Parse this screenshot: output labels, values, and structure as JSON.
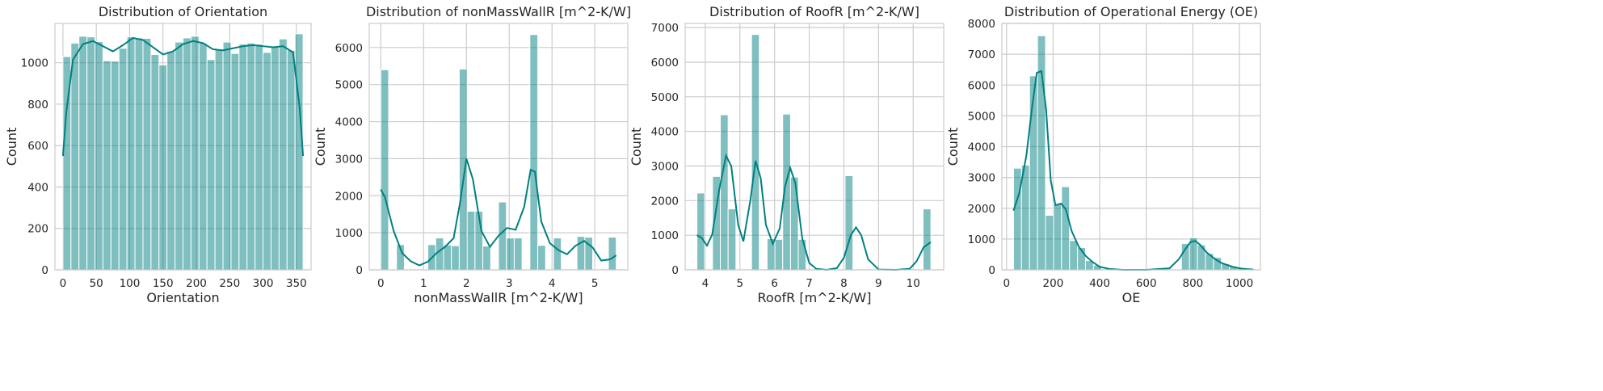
{
  "colors": {
    "bar": "#008080",
    "kde": "#008080",
    "grid": "#cccccc",
    "text": "#262626"
  },
  "chart_data": [
    {
      "type": "bar",
      "title": "Distribution of Orientation",
      "xlabel": "Orientation",
      "ylabel": "Count",
      "xlim": [
        -12,
        372
      ],
      "ylim": [
        0,
        1190
      ],
      "xticks": [
        0,
        50,
        100,
        150,
        200,
        250,
        300,
        350
      ],
      "yticks": [
        0,
        200,
        400,
        600,
        800,
        1000
      ],
      "grid": true,
      "bin_edges": [
        0,
        12,
        24,
        36,
        48,
        60,
        72,
        84,
        96,
        108,
        120,
        132,
        144,
        156,
        168,
        180,
        192,
        204,
        216,
        228,
        240,
        252,
        264,
        276,
        288,
        300,
        312,
        324,
        336,
        348,
        360
      ],
      "counts": [
        1030,
        1095,
        1128,
        1125,
        1102,
        1010,
        1008,
        1070,
        1125,
        1120,
        1118,
        1040,
        990,
        1055,
        1100,
        1120,
        1128,
        1095,
        1015,
        1065,
        1100,
        1045,
        1090,
        1095,
        1090,
        1050,
        1080,
        1115,
        1060,
        1140
      ],
      "kde": {
        "x": [
          0,
          5,
          15,
          30,
          45,
          60,
          75,
          90,
          105,
          120,
          135,
          150,
          165,
          180,
          195,
          210,
          225,
          240,
          255,
          270,
          285,
          300,
          315,
          330,
          345,
          355,
          360
        ],
        "y": [
          550,
          760,
          1015,
          1090,
          1105,
          1080,
          1055,
          1085,
          1120,
          1110,
          1075,
          1040,
          1055,
          1090,
          1105,
          1095,
          1065,
          1060,
          1070,
          1080,
          1085,
          1080,
          1075,
          1080,
          1050,
          780,
          550
        ]
      }
    },
    {
      "type": "bar",
      "title": "Distribution of nonMassWallR [m^2-K/W]",
      "xlabel": "nonMassWallR [m^2-K/W]",
      "ylabel": "Count",
      "xlim": [
        -0.27,
        5.77
      ],
      "ylim": [
        0,
        6650
      ],
      "xticks": [
        0,
        1,
        2,
        3,
        4,
        5
      ],
      "yticks": [
        0,
        1000,
        2000,
        3000,
        4000,
        5000,
        6000
      ],
      "grid": true,
      "bin_edges": [
        0,
        0.183,
        0.367,
        0.55,
        0.733,
        0.917,
        1.1,
        1.283,
        1.467,
        1.65,
        1.833,
        2.017,
        2.2,
        2.383,
        2.567,
        2.75,
        2.933,
        3.117,
        3.3,
        3.483,
        3.667,
        3.85,
        4.033,
        4.217,
        4.4,
        4.583,
        4.767,
        4.95,
        5.133,
        5.317,
        5.5
      ],
      "counts": [
        5400,
        0,
        680,
        0,
        0,
        0,
        680,
        860,
        670,
        650,
        5420,
        1580,
        1580,
        640,
        0,
        1830,
        860,
        860,
        0,
        6350,
        660,
        0,
        860,
        0,
        0,
        900,
        880,
        0,
        0,
        880
      ],
      "kde": {
        "x": [
          0,
          0.1,
          0.3,
          0.5,
          0.7,
          0.9,
          1.1,
          1.3,
          1.5,
          1.7,
          1.85,
          2.0,
          2.15,
          2.35,
          2.55,
          2.75,
          2.95,
          3.15,
          3.35,
          3.5,
          3.6,
          3.75,
          3.95,
          4.15,
          4.35,
          4.55,
          4.75,
          4.95,
          5.15,
          5.35,
          5.5
        ],
        "y": [
          2170,
          1950,
          1050,
          450,
          230,
          120,
          220,
          450,
          620,
          850,
          1800,
          3000,
          2450,
          1050,
          620,
          920,
          1130,
          1080,
          1700,
          2700,
          2650,
          1300,
          720,
          530,
          420,
          650,
          780,
          600,
          250,
          280,
          390
        ]
      }
    },
    {
      "type": "bar",
      "title": "Distribution of RoofR [m^2-K/W]",
      "xlabel": "RoofR [m^2-K/W]",
      "ylabel": "Count",
      "xlim": [
        3.42,
        10.88
      ],
      "ylim": [
        0,
        7120
      ],
      "xticks": [
        4,
        5,
        6,
        7,
        8,
        9,
        10
      ],
      "yticks": [
        0,
        1000,
        2000,
        3000,
        4000,
        5000,
        6000,
        7000
      ],
      "grid": true,
      "bin_edges": [
        3.76,
        3.985,
        4.21,
        4.435,
        4.66,
        4.885,
        5.11,
        5.335,
        5.56,
        5.785,
        6.01,
        6.235,
        6.46,
        6.685,
        6.91,
        7.135,
        7.36,
        7.585,
        7.81,
        8.035,
        8.26,
        8.485,
        8.71,
        8.935,
        9.16,
        9.385,
        9.61,
        9.835,
        10.06,
        10.285,
        10.51
      ],
      "counts": [
        2220,
        0,
        2700,
        4480,
        1760,
        0,
        0,
        6800,
        0,
        900,
        880,
        4500,
        2680,
        880,
        0,
        0,
        0,
        0,
        0,
        2720,
        0,
        0,
        0,
        0,
        0,
        0,
        0,
        0,
        0,
        1760
      ],
      "kde": {
        "x": [
          3.76,
          3.9,
          4.05,
          4.2,
          4.4,
          4.6,
          4.75,
          4.95,
          5.1,
          5.3,
          5.45,
          5.6,
          5.75,
          5.95,
          6.15,
          6.3,
          6.45,
          6.6,
          6.8,
          7.0,
          7.2,
          7.5,
          7.8,
          8.0,
          8.2,
          8.35,
          8.5,
          8.7,
          9.0,
          9.5,
          9.9,
          10.1,
          10.3,
          10.51
        ],
        "y": [
          1000,
          920,
          700,
          1020,
          2300,
          3300,
          3000,
          1300,
          820,
          2000,
          3150,
          2650,
          1300,
          750,
          1200,
          2400,
          2950,
          2500,
          900,
          200,
          30,
          0,
          50,
          350,
          1000,
          1230,
          1000,
          300,
          10,
          0,
          30,
          250,
          650,
          800
        ]
      }
    },
    {
      "type": "bar",
      "title": "Distribution of Operational Energy (OE)",
      "xlabel": "OE",
      "ylabel": "Count",
      "xlim": [
        -20,
        1090
      ],
      "ylim": [
        0,
        8000
      ],
      "xticks": [
        0,
        200,
        400,
        600,
        800,
        1000
      ],
      "yticks": [
        0,
        1000,
        2000,
        3000,
        4000,
        5000,
        6000,
        7000,
        8000
      ],
      "grid": true,
      "bin_edges": [
        30,
        64.3,
        98.7,
        133,
        167.3,
        201.7,
        236,
        270.3,
        304.7,
        339,
        373.3,
        407.7,
        442,
        476.3,
        510.7,
        545,
        579.3,
        613.7,
        648,
        682.3,
        716.7,
        751,
        785.3,
        819.7,
        854,
        888.3,
        922.7,
        957,
        991.3,
        1025.7,
        1060
      ],
      "counts": [
        3300,
        3400,
        6300,
        7600,
        1770,
        2140,
        2700,
        950,
        720,
        300,
        150,
        30,
        0,
        0,
        0,
        0,
        0,
        0,
        0,
        0,
        0,
        850,
        1040,
        810,
        530,
        400,
        200,
        120,
        60,
        30
      ],
      "kde": {
        "x": [
          30,
          55,
          85,
          110,
          130,
          150,
          170,
          190,
          210,
          235,
          255,
          280,
          310,
          340,
          370,
          400,
          440,
          500,
          600,
          700,
          740,
          770,
          790,
          810,
          830,
          860,
          890,
          920,
          950,
          980,
          1010,
          1040,
          1060
        ],
        "y": [
          1920,
          2500,
          3700,
          5300,
          6400,
          6450,
          5200,
          2900,
          2100,
          2150,
          1950,
          1250,
          750,
          450,
          250,
          100,
          30,
          0,
          0,
          50,
          350,
          700,
          900,
          940,
          820,
          560,
          380,
          230,
          150,
          80,
          40,
          20,
          10
        ]
      }
    }
  ]
}
